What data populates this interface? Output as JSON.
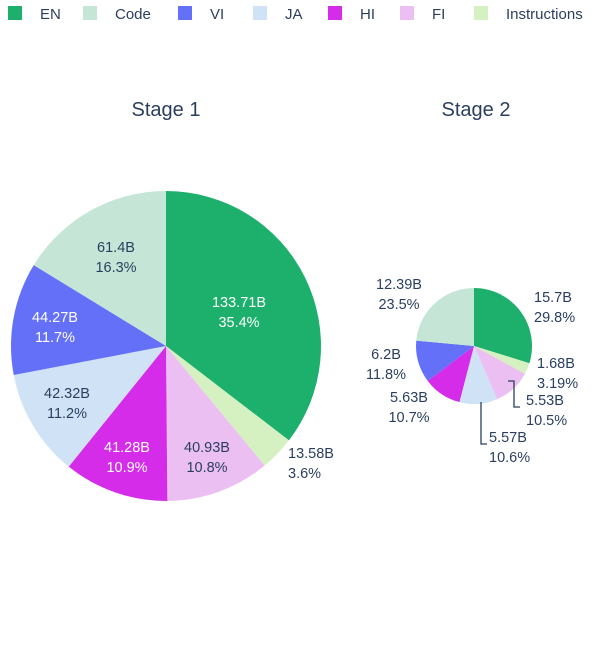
{
  "legend": [
    {
      "name": "EN",
      "color": "#1cb06c"
    },
    {
      "name": "Code",
      "color": "#c5e6d7"
    },
    {
      "name": "VI",
      "color": "#6470f8"
    },
    {
      "name": "JA",
      "color": "#cfe2f6"
    },
    {
      "name": "HI",
      "color": "#d42ce8"
    },
    {
      "name": "FI",
      "color": "#ecbff3"
    },
    {
      "name": "Instructions",
      "color": "#d5f1c2"
    }
  ],
  "chart_data": [
    {
      "type": "pie",
      "title": "Stage 1",
      "slices": [
        {
          "category": "EN",
          "value_label": "133.71B",
          "percent_label": "35.4%",
          "value": 133.71
        },
        {
          "category": "Instructions",
          "value_label": "13.58B",
          "percent_label": "3.6%",
          "value": 13.58
        },
        {
          "category": "FI",
          "value_label": "40.93B",
          "percent_label": "10.8%",
          "value": 40.93
        },
        {
          "category": "HI",
          "value_label": "41.28B",
          "percent_label": "10.9%",
          "value": 41.28
        },
        {
          "category": "JA",
          "value_label": "42.32B",
          "percent_label": "11.2%",
          "value": 42.32
        },
        {
          "category": "VI",
          "value_label": "44.27B",
          "percent_label": "11.7%",
          "value": 44.27
        },
        {
          "category": "Code",
          "value_label": "61.4B",
          "percent_label": "16.3%",
          "value": 61.4
        }
      ]
    },
    {
      "type": "pie",
      "title": "Stage 2",
      "slices": [
        {
          "category": "EN",
          "value_label": "15.7B",
          "percent_label": "29.8%",
          "value": 15.7
        },
        {
          "category": "Instructions",
          "value_label": "1.68B",
          "percent_label": "3.19%",
          "value": 1.68
        },
        {
          "category": "FI",
          "value_label": "5.53B",
          "percent_label": "10.5%",
          "value": 5.53
        },
        {
          "category": "JA",
          "value_label": "5.57B",
          "percent_label": "10.6%",
          "value": 5.57
        },
        {
          "category": "HI",
          "value_label": "5.63B",
          "percent_label": "10.7%",
          "value": 5.63
        },
        {
          "category": "VI",
          "value_label": "6.2B",
          "percent_label": "11.8%",
          "value": 6.2
        },
        {
          "category": "Code",
          "value_label": "12.39B",
          "percent_label": "23.5%",
          "value": 12.39
        }
      ]
    }
  ]
}
